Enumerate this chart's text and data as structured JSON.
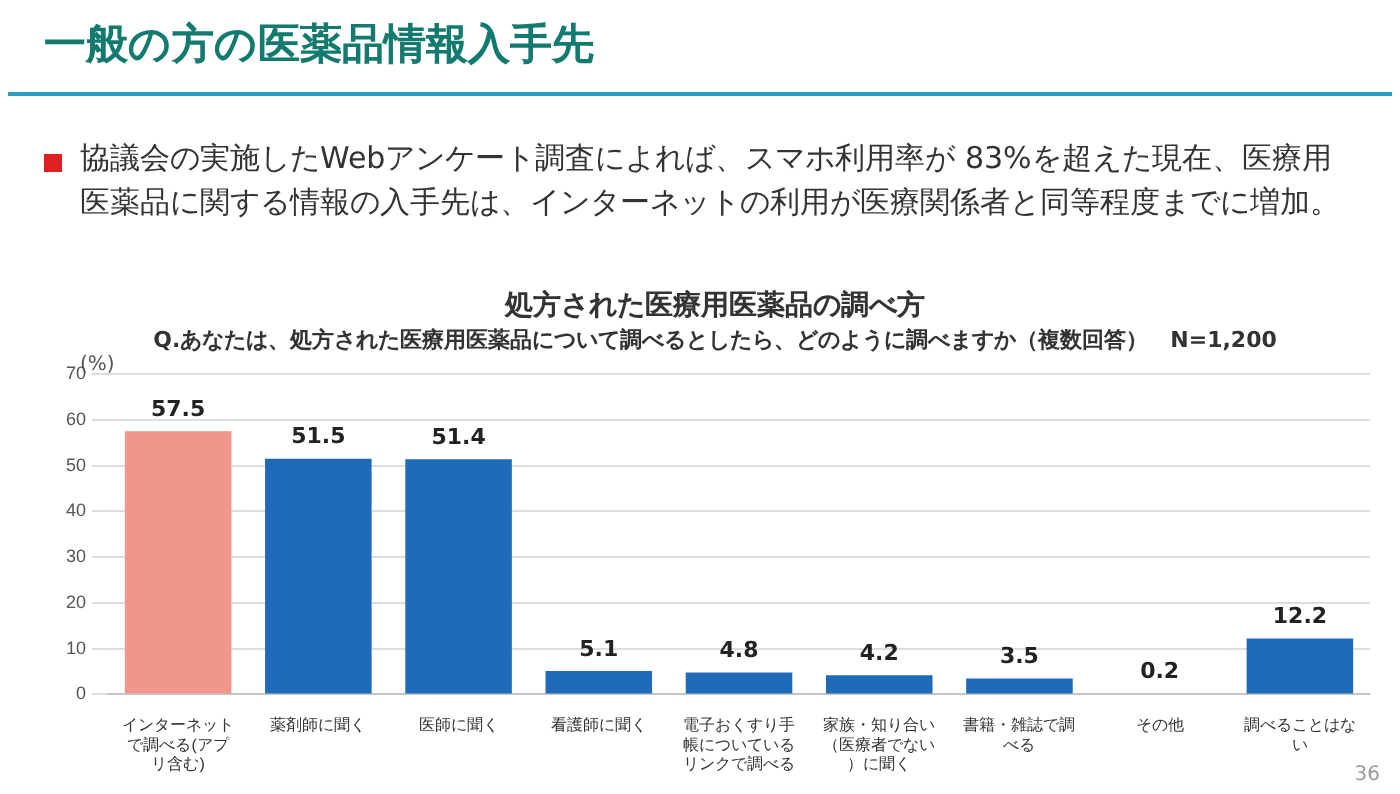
{
  "chart_data": {
    "type": "bar",
    "title": "処方された医療用医薬品の調べ方",
    "subtitle": "Q.あなたは、処方された医療用医薬品について調べるとしたら、どのように調べますか（複数回答）　N=1,200",
    "ylabel": "(%)",
    "annotations": [
      "一般の方の医薬品情報入手先",
      "協議会の実施したWebアンケート調査によれば、スマホ利用率が 83%を超えた現在、医療用医薬品に関する情報の入手先は、インターネットの利用が医療関係者と同等程度までに増加。",
      "36"
    ],
    "categories": [
      "インターネットで調べる(アプリ含む)",
      "薬剤師に聞く",
      "医師に聞く",
      "看護師に聞く",
      "電子おくすり手帳についているリンクで調べる",
      "家族・知り合い（医療者でない）に聞く",
      "書籍・雑誌で調べる",
      "その他",
      "調べることはない"
    ],
    "values": [
      57.5,
      51.5,
      51.4,
      5.1,
      4.8,
      4.2,
      3.5,
      0.2,
      12.2
    ],
    "colors": [
      "#f0968a",
      "#1f6bb8",
      "#1f6bb8",
      "#1f6bb8",
      "#1f6bb8",
      "#1f6bb8",
      "#1f6bb8",
      "#1f6bb8",
      "#1f6bb8"
    ],
    "ylim": [
      0,
      70
    ],
    "yticks": [
      0,
      10,
      20,
      30,
      40,
      50,
      60,
      70
    ],
    "grid": "y",
    "legend": false,
    "data_labels": true
  }
}
